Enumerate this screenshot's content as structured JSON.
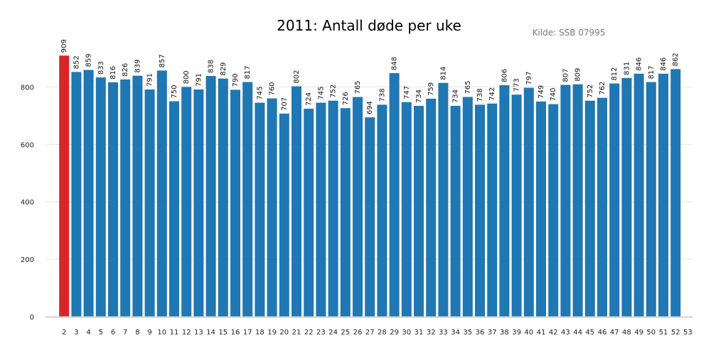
{
  "chart_data": {
    "type": "bar",
    "title": "2011: Antall døde per uke",
    "source": "Kilde: SSB 07995",
    "xlabel": "",
    "ylabel": "",
    "ylim": [
      0,
      950
    ],
    "yticks": [
      0,
      200,
      400,
      600,
      800
    ],
    "grid": true,
    "categories": [
      "2",
      "3",
      "4",
      "5",
      "6",
      "7",
      "8",
      "9",
      "10",
      "11",
      "12",
      "13",
      "14",
      "15",
      "16",
      "17",
      "18",
      "19",
      "20",
      "21",
      "22",
      "23",
      "24",
      "25",
      "26",
      "27",
      "28",
      "29",
      "30",
      "31",
      "32",
      "33",
      "34",
      "35",
      "36",
      "37",
      "38",
      "39",
      "40",
      "41",
      "42",
      "43",
      "44",
      "45",
      "46",
      "47",
      "48",
      "49",
      "50",
      "51",
      "52"
    ],
    "extra_tick_labels": [
      "53"
    ],
    "values": [
      909,
      852,
      859,
      833,
      816,
      826,
      839,
      791,
      857,
      750,
      800,
      791,
      838,
      829,
      790,
      817,
      745,
      760,
      707,
      802,
      724,
      745,
      752,
      726,
      765,
      694,
      738,
      848,
      747,
      734,
      759,
      814,
      734,
      765,
      738,
      742,
      806,
      773,
      797,
      749,
      740,
      807,
      809,
      752,
      762,
      812,
      831,
      846,
      817,
      846,
      862
    ],
    "highlight_index": 0,
    "colors": {
      "bar": "#1f77b4",
      "highlight": "#d62728",
      "grid": "#e6e6e6",
      "axis": "#d0d0d0"
    }
  }
}
